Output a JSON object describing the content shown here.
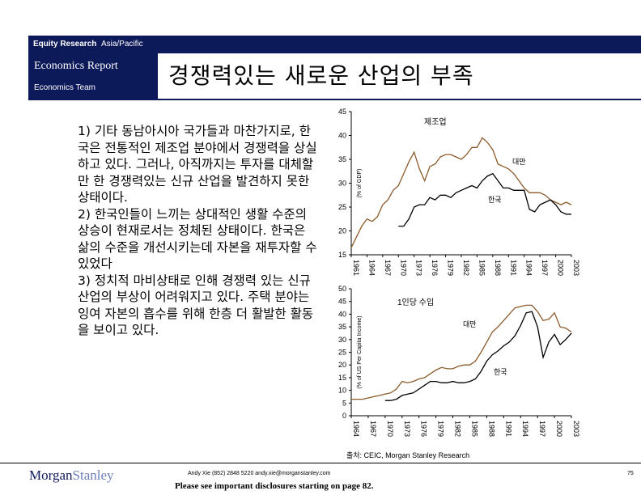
{
  "header": {
    "bar_title_bold": "Equity Research",
    "bar_title_rest": "Asia/Pacific",
    "report_type": "Economics Report",
    "team": "Economics Team",
    "main_title": "경쟁력있는 새로운 산업의 부족"
  },
  "body": {
    "paragraphs": [
      "1) 기타 동남아시아 국가들과  마찬가지로, 한국은 전통적인 제조업 분야에서 경쟁력을 상실하고 있다. 그러나, 아직까지는 투자를 대체할만 한 경쟁력있는 신규 산업을 발견하지 못한 상태이다.",
      "2) 한국인들이 느끼는 상대적인 생활 수준의 상승이 현재로서는 정체된 상태이다. 한국은 삶의 수준을 개선시키는데 자본을 재투자할 수 있었다",
      "3) 정치적 마비상태로 인해 경쟁력 있는 신규 산업의 부상이 어려워지고 있다. 주택 분야는 잉여 자본의 흡수를 위해 한층 더 활발한 활동을 보이고 있다."
    ]
  },
  "chart_data": [
    {
      "type": "line",
      "title": "제조업",
      "ylabel": "(% of GDP)",
      "ylim": [
        15,
        45
      ],
      "yticks": [
        "15",
        "20",
        "25",
        "30",
        "35",
        "40",
        "45"
      ],
      "xlim": [
        1961,
        2003
      ],
      "xticks": [
        "1961",
        "1964",
        "1967",
        "1970",
        "1973",
        "1976",
        "1979",
        "1982",
        "1985",
        "1988",
        "1991",
        "1994",
        "1997",
        "2000",
        "2003"
      ],
      "series": [
        {
          "name": "대만",
          "color": "#8b5a2b",
          "x": [
            1961,
            1963,
            1964,
            1965,
            1966,
            1967,
            1968,
            1969,
            1970,
            1971,
            1972,
            1973,
            1974,
            1975,
            1976,
            1977,
            1978,
            1979,
            1980,
            1981,
            1982,
            1983,
            1984,
            1985,
            1986,
            1987,
            1988,
            1989,
            1990,
            1991,
            1992,
            1993,
            1994,
            1995,
            1996,
            1997,
            1998,
            1999,
            2000,
            2001,
            2002,
            2003
          ],
          "y": [
            16.5,
            21.0,
            22.5,
            22.0,
            23.0,
            25.5,
            26.5,
            28.5,
            29.5,
            32.0,
            34.5,
            36.5,
            33.0,
            30.5,
            33.5,
            34.0,
            35.5,
            36.0,
            36.0,
            35.5,
            35.0,
            36.0,
            37.5,
            37.5,
            39.5,
            38.5,
            37.0,
            34.0,
            33.5,
            33.0,
            32.0,
            30.5,
            29.0,
            28.0,
            28.0,
            28.0,
            27.5,
            26.5,
            26.0,
            25.5,
            26.0,
            25.5
          ]
        },
        {
          "name": "한국",
          "color": "#000000",
          "x": [
            1970,
            1971,
            1972,
            1973,
            1974,
            1975,
            1976,
            1977,
            1978,
            1979,
            1980,
            1981,
            1982,
            1983,
            1984,
            1985,
            1986,
            1987,
            1988,
            1989,
            1990,
            1991,
            1992,
            1993,
            1994,
            1995,
            1996,
            1997,
            1998,
            1999,
            2000,
            2001,
            2002,
            2003
          ],
          "y": [
            21.0,
            21.0,
            22.5,
            25.0,
            25.5,
            25.5,
            27.0,
            26.5,
            27.5,
            27.5,
            27.0,
            28.0,
            28.5,
            29.0,
            29.5,
            29.0,
            30.5,
            31.5,
            32.0,
            30.5,
            29.0,
            29.0,
            28.5,
            28.5,
            28.5,
            24.5,
            24.0,
            25.5,
            26.0,
            26.5,
            25.5,
            24.0,
            23.5,
            23.5
          ]
        }
      ]
    },
    {
      "type": "line",
      "title": "1인당 수입",
      "ylabel": "(% of US Per Capita Income)",
      "ylim": [
        0,
        50
      ],
      "yticks": [
        "0",
        "5",
        "10",
        "15",
        "20",
        "25",
        "30",
        "35",
        "40",
        "45",
        "50"
      ],
      "xlim": [
        1964,
        2003
      ],
      "xticks": [
        "1964",
        "1967",
        "1970",
        "1973",
        "1976",
        "1979",
        "1982",
        "1985",
        "1988",
        "1991",
        "1994",
        "1997",
        "2000",
        "2003"
      ],
      "series": [
        {
          "name": "대만",
          "color": "#8b5a2b",
          "x": [
            1964,
            1965,
            1966,
            1967,
            1968,
            1969,
            1970,
            1971,
            1972,
            1973,
            1974,
            1975,
            1976,
            1977,
            1978,
            1979,
            1980,
            1981,
            1982,
            1983,
            1984,
            1985,
            1986,
            1987,
            1988,
            1989,
            1990,
            1991,
            1992,
            1993,
            1994,
            1995,
            1996,
            1997,
            1998,
            1999,
            2000,
            2001,
            2002,
            2003
          ],
          "y": [
            6.5,
            6.5,
            6.5,
            7.0,
            7.5,
            8.0,
            8.5,
            9.0,
            10.5,
            13.5,
            13.0,
            13.5,
            14.5,
            15.0,
            16.5,
            18.0,
            19.0,
            18.5,
            18.5,
            19.5,
            20.0,
            20.0,
            21.5,
            25.0,
            29.0,
            33.0,
            35.0,
            37.5,
            40.0,
            42.5,
            43.0,
            43.5,
            43.5,
            41.0,
            37.5,
            38.0,
            40.5,
            35.0,
            34.5,
            33.0
          ]
        },
        {
          "name": "한국",
          "color": "#000000",
          "x": [
            1964,
            1965,
            1966,
            1967,
            1968,
            1969,
            1970,
            1971,
            1972,
            1973,
            1974,
            1975,
            1976,
            1977,
            1978,
            1979,
            1980,
            1981,
            1982,
            1983,
            1984,
            1985,
            1986,
            1987,
            1988,
            1989,
            1990,
            1991,
            1992,
            1993,
            1994,
            1995,
            1996,
            1997,
            1998,
            1999,
            2000,
            2001,
            2002,
            2003
          ],
          "y": [
            null,
            null,
            null,
            null,
            null,
            null,
            6.0,
            6.0,
            6.5,
            8.0,
            8.5,
            9.0,
            10.5,
            12.0,
            13.5,
            13.5,
            13.0,
            13.0,
            13.5,
            13.0,
            13.0,
            13.5,
            14.5,
            17.5,
            21.5,
            24.0,
            25.5,
            27.5,
            29.0,
            31.5,
            35.5,
            40.5,
            41.0,
            35.0,
            23.0,
            29.0,
            32.0,
            28.0,
            30.0,
            32.5
          ]
        }
      ]
    }
  ],
  "footer": {
    "source": "출처: CEIC, Morgan Stanley Research",
    "logo_a": "Morgan",
    "logo_b": "Stanley",
    "author": "Andy Xie (852) 2848 5220 andy.xie@morganstanley.com",
    "disclosure": "Please see important disclosures starting on page 82.",
    "page": "75"
  }
}
